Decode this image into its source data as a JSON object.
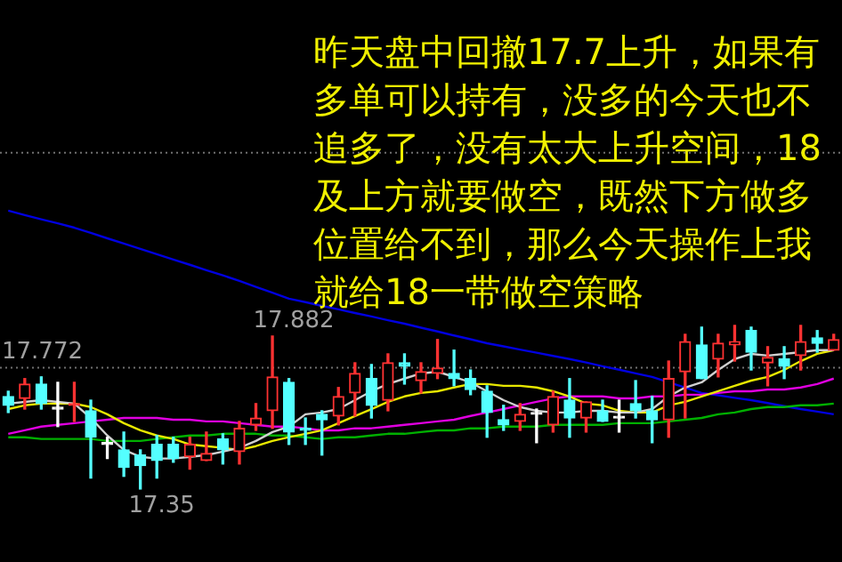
{
  "chart_data": {
    "type": "candlestick",
    "categories": [
      null,
      null,
      null,
      null,
      null,
      null,
      null,
      null,
      null,
      null,
      null,
      null,
      null,
      null,
      null,
      null,
      null,
      null,
      null,
      null,
      null,
      null,
      null,
      null,
      null,
      null,
      null,
      null,
      null,
      null,
      null,
      null,
      null,
      null,
      null,
      null,
      null,
      null,
      null,
      null,
      null,
      null,
      null,
      null,
      null,
      null,
      null,
      null,
      null,
      null,
      null
    ],
    "ohlc": [
      [
        17.672,
        17.69,
        17.616,
        17.641
      ],
      [
        17.665,
        17.734,
        17.628,
        17.715
      ],
      [
        17.715,
        17.74,
        17.628,
        17.647
      ],
      [
        17.628,
        17.721,
        17.567,
        17.628
      ],
      [
        17.641,
        17.721,
        17.585,
        17.641
      ],
      [
        17.622,
        17.659,
        17.388,
        17.53
      ],
      [
        17.505,
        17.53,
        17.456,
        17.505
      ],
      [
        17.486,
        17.548,
        17.394,
        17.425
      ],
      [
        17.468,
        17.486,
        17.35,
        17.431
      ],
      [
        17.505,
        17.536,
        17.388,
        17.449
      ],
      [
        17.505,
        17.53,
        17.443,
        17.456
      ],
      [
        17.462,
        17.53,
        17.419,
        17.505
      ],
      [
        17.449,
        17.548,
        17.449,
        17.474
      ],
      [
        17.524,
        17.542,
        17.437,
        17.486
      ],
      [
        17.48,
        17.585,
        17.437,
        17.561
      ],
      [
        17.573,
        17.647,
        17.554,
        17.597
      ],
      [
        17.622,
        17.882,
        17.561,
        17.74
      ],
      [
        17.721,
        17.734,
        17.505,
        17.548
      ],
      [
        17.561,
        17.597,
        17.505,
        17.554
      ],
      [
        17.61,
        17.622,
        17.468,
        17.591
      ],
      [
        17.604,
        17.703,
        17.573,
        17.672
      ],
      [
        17.684,
        17.789,
        17.604,
        17.752
      ],
      [
        17.734,
        17.783,
        17.597,
        17.641
      ],
      [
        17.659,
        17.82,
        17.622,
        17.789
      ],
      [
        17.789,
        17.82,
        17.715,
        17.777
      ],
      [
        17.727,
        17.789,
        17.684,
        17.758
      ],
      [
        17.752,
        17.87,
        17.734,
        17.771
      ],
      [
        17.752,
        17.833,
        17.709,
        17.734
      ],
      [
        17.734,
        17.764,
        17.678,
        17.696
      ],
      [
        17.69,
        17.709,
        17.53,
        17.616
      ],
      [
        17.591,
        17.641,
        17.554,
        17.573
      ],
      [
        17.585,
        17.647,
        17.554,
        17.61
      ],
      [
        17.61,
        17.628,
        17.511,
        17.61
      ],
      [
        17.573,
        17.69,
        17.548,
        17.672
      ],
      [
        17.659,
        17.734,
        17.53,
        17.597
      ],
      [
        17.597,
        17.653,
        17.548,
        17.653
      ],
      [
        17.622,
        17.659,
        17.585,
        17.585
      ],
      [
        17.597,
        17.659,
        17.548,
        17.597
      ],
      [
        17.647,
        17.727,
        17.597,
        17.622
      ],
      [
        17.622,
        17.672,
        17.511,
        17.591
      ],
      [
        17.591,
        17.795,
        17.53,
        17.734
      ],
      [
        17.758,
        17.888,
        17.597,
        17.863
      ],
      [
        17.851,
        17.913,
        17.734,
        17.734
      ],
      [
        17.802,
        17.888,
        17.74,
        17.857
      ],
      [
        17.851,
        17.919,
        17.795,
        17.863
      ],
      [
        17.901,
        17.913,
        17.764,
        17.826
      ],
      [
        17.789,
        17.845,
        17.709,
        17.808
      ],
      [
        17.802,
        17.845,
        17.734,
        17.777
      ],
      [
        17.814,
        17.919,
        17.764,
        17.863
      ],
      [
        17.876,
        17.901,
        17.826,
        17.857
      ],
      [
        17.833,
        17.888,
        17.833,
        17.87
      ]
    ],
    "colors": [
      "#54ffff",
      "#ff3232",
      "#54ffff",
      "#ffffff",
      "#ff3232",
      "#54ffff",
      "#ffffff",
      "#54ffff",
      "#54ffff",
      "#54ffff",
      "#54ffff",
      "#ff3232",
      "#ff3232",
      "#54ffff",
      "#ff3232",
      "#ff3232",
      "#ff3232",
      "#54ffff",
      "#54ffff",
      "#54ffff",
      "#ff3232",
      "#ff3232",
      "#54ffff",
      "#ff3232",
      "#54ffff",
      "#ff3232",
      "#ff3232",
      "#54ffff",
      "#54ffff",
      "#54ffff",
      "#54ffff",
      "#ff3232",
      "#ffffff",
      "#ff3232",
      "#54ffff",
      "#ff3232",
      "#54ffff",
      "#ffffff",
      "#54ffff",
      "#54ffff",
      "#ff3232",
      "#ff3232",
      "#54ffff",
      "#ff3232",
      "#ff3232",
      "#54ffff",
      "#ff3232",
      "#54ffff",
      "#ff3232",
      "#54ffff",
      "#ff3232"
    ],
    "series": [
      {
        "type": "line",
        "color": "#d0d0d0",
        "values": [
          17.647,
          17.653,
          17.659,
          17.653,
          17.647,
          17.597,
          17.536,
          17.486,
          17.462,
          17.456,
          17.456,
          17.462,
          17.468,
          17.48,
          17.493,
          17.517,
          17.548,
          17.567,
          17.61,
          17.616,
          17.628,
          17.659,
          17.69,
          17.715,
          17.734,
          17.752,
          17.758,
          17.74,
          17.721,
          17.69,
          17.659,
          17.635,
          17.622,
          17.616,
          17.616,
          17.622,
          17.622,
          17.616,
          17.616,
          17.628,
          17.672,
          17.703,
          17.721,
          17.764,
          17.802,
          17.82,
          17.814,
          17.82,
          17.826,
          17.833,
          17.833
        ]
      },
      {
        "type": "line",
        "color": "#e8e800",
        "values": [
          17.628,
          17.641,
          17.647,
          17.647,
          17.647,
          17.635,
          17.61,
          17.579,
          17.554,
          17.536,
          17.524,
          17.505,
          17.499,
          17.493,
          17.486,
          17.499,
          17.517,
          17.53,
          17.542,
          17.554,
          17.579,
          17.604,
          17.628,
          17.653,
          17.672,
          17.684,
          17.69,
          17.703,
          17.715,
          17.715,
          17.709,
          17.709,
          17.703,
          17.69,
          17.672,
          17.647,
          17.641,
          17.622,
          17.616,
          17.616,
          17.641,
          17.653,
          17.672,
          17.69,
          17.709,
          17.727,
          17.74,
          17.764,
          17.795,
          17.82,
          17.833
        ]
      },
      {
        "type": "line",
        "color": "#e000e0",
        "values": [
          17.542,
          17.554,
          17.567,
          17.573,
          17.579,
          17.585,
          17.591,
          17.597,
          17.597,
          17.597,
          17.591,
          17.591,
          17.585,
          17.585,
          17.579,
          17.573,
          17.567,
          17.567,
          17.561,
          17.554,
          17.554,
          17.561,
          17.561,
          17.567,
          17.573,
          17.579,
          17.585,
          17.591,
          17.604,
          17.616,
          17.628,
          17.641,
          17.653,
          17.665,
          17.672,
          17.672,
          17.672,
          17.665,
          17.665,
          17.672,
          17.672,
          17.678,
          17.678,
          17.684,
          17.69,
          17.69,
          17.696,
          17.696,
          17.703,
          17.715,
          17.734
        ]
      },
      {
        "type": "line",
        "color": "#00b000",
        "values": [
          17.53,
          17.53,
          17.524,
          17.524,
          17.524,
          17.524,
          17.517,
          17.517,
          17.517,
          17.524,
          17.53,
          17.536,
          17.536,
          17.542,
          17.542,
          17.542,
          17.536,
          17.536,
          17.53,
          17.524,
          17.53,
          17.53,
          17.536,
          17.542,
          17.542,
          17.548,
          17.554,
          17.554,
          17.561,
          17.561,
          17.567,
          17.567,
          17.567,
          17.573,
          17.573,
          17.573,
          17.573,
          17.579,
          17.579,
          17.579,
          17.585,
          17.591,
          17.597,
          17.61,
          17.616,
          17.628,
          17.635,
          17.635,
          17.641,
          17.641,
          17.647
        ]
      },
      {
        "type": "line",
        "color": "#0000e0",
        "values": [
          18.318,
          18.303,
          18.288,
          18.274,
          18.259,
          18.241,
          18.222,
          18.204,
          18.185,
          18.167,
          18.148,
          18.13,
          18.111,
          18.093,
          18.074,
          18.053,
          18.033,
          18.012,
          18.0,
          17.987,
          17.975,
          17.962,
          17.95,
          17.937,
          17.925,
          17.911,
          17.898,
          17.884,
          17.871,
          17.857,
          17.846,
          17.835,
          17.824,
          17.813,
          17.802,
          17.79,
          17.777,
          17.765,
          17.752,
          17.74,
          17.721,
          17.703,
          17.684,
          17.676,
          17.667,
          17.659,
          17.649,
          17.638,
          17.628,
          17.619,
          17.61
        ]
      }
    ],
    "ylim": [
      17.096,
      19.051
    ],
    "ref_lines": [
      {
        "axis": "y",
        "value": 17.772,
        "label": "17.772",
        "color": "#707070",
        "line_style": "dotted"
      },
      {
        "axis": "y",
        "value": 18.52,
        "color": "#707070",
        "line_style": "dotted"
      }
    ],
    "annotations": [
      "昨天盘中回撤17.7上升，如果有多单可以持有，没多的今天也不追多了，没有太大上升空间，18及上方就要做空，既然下方做多位置给不到，那么今天操作上我就给18一带做空策略",
      "17.882",
      "17.35"
    ],
    "tick_labels": false,
    "marker": "none"
  }
}
